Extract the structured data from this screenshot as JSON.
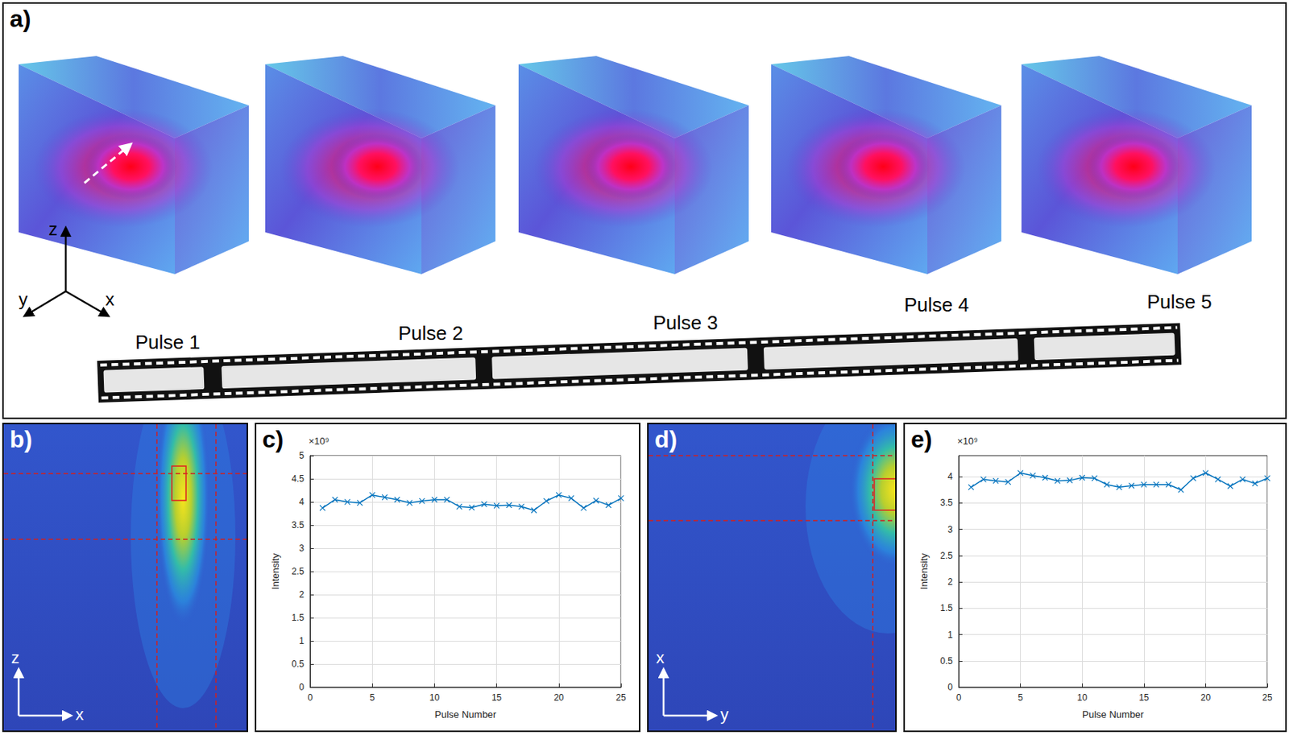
{
  "figure": {
    "panels": [
      {
        "label": "a)",
        "pulses": [
          "Pulse 1",
          "Pulse 2",
          "Pulse 3",
          "Pulse 4",
          "Pulse 5"
        ],
        "axes": [
          "z",
          "y",
          "x"
        ]
      },
      {
        "label": "b)",
        "axes": [
          "z",
          "x"
        ]
      },
      {
        "label": "c)"
      },
      {
        "label": "d)",
        "axes": [
          "x",
          "y"
        ]
      },
      {
        "label": "e)"
      }
    ]
  },
  "chart_data": [
    {
      "type": "line",
      "xlabel": "Pulse Number",
      "ylabel": "Intensity",
      "annotations": [
        "×10⁹"
      ],
      "color": "#0072bd",
      "marker": "x",
      "grid": true,
      "x": [
        1,
        2,
        3,
        4,
        5,
        6,
        7,
        8,
        9,
        10,
        11,
        12,
        13,
        14,
        15,
        16,
        17,
        18,
        19,
        20,
        21,
        22,
        23,
        24,
        25
      ],
      "values": [
        3.87,
        4.05,
        4.0,
        3.98,
        4.15,
        4.1,
        4.05,
        3.98,
        4.02,
        4.05,
        4.05,
        3.9,
        3.88,
        3.95,
        3.92,
        3.93,
        3.9,
        3.82,
        4.02,
        4.15,
        4.08,
        3.87,
        4.03,
        3.93,
        4.08
      ],
      "xlim": [
        0,
        25
      ],
      "xticks": [
        0,
        5,
        10,
        15,
        20,
        25
      ],
      "ylim": [
        0,
        5
      ],
      "yticks": [
        0,
        0.5,
        1,
        1.5,
        2,
        2.5,
        3,
        3.5,
        4,
        4.5,
        5
      ]
    },
    {
      "type": "line",
      "xlabel": "Pulse Number",
      "ylabel": "Intensity",
      "annotations": [
        "×10⁹"
      ],
      "color": "#0072bd",
      "marker": "x",
      "grid": true,
      "x": [
        1,
        2,
        3,
        4,
        5,
        6,
        7,
        8,
        9,
        10,
        11,
        12,
        13,
        14,
        15,
        16,
        17,
        18,
        19,
        20,
        21,
        22,
        23,
        24,
        25
      ],
      "values": [
        3.8,
        3.95,
        3.92,
        3.9,
        4.07,
        4.02,
        3.98,
        3.92,
        3.93,
        3.98,
        3.97,
        3.85,
        3.8,
        3.83,
        3.85,
        3.85,
        3.85,
        3.75,
        3.97,
        4.07,
        3.95,
        3.82,
        3.95,
        3.87,
        3.97
      ],
      "xlim": [
        0,
        25
      ],
      "xticks": [
        0,
        5,
        10,
        15,
        20,
        25
      ],
      "ylim": [
        0,
        4.4
      ],
      "yticks": [
        0,
        0.5,
        1,
        1.5,
        2,
        2.5,
        3,
        3.5,
        4
      ]
    }
  ]
}
